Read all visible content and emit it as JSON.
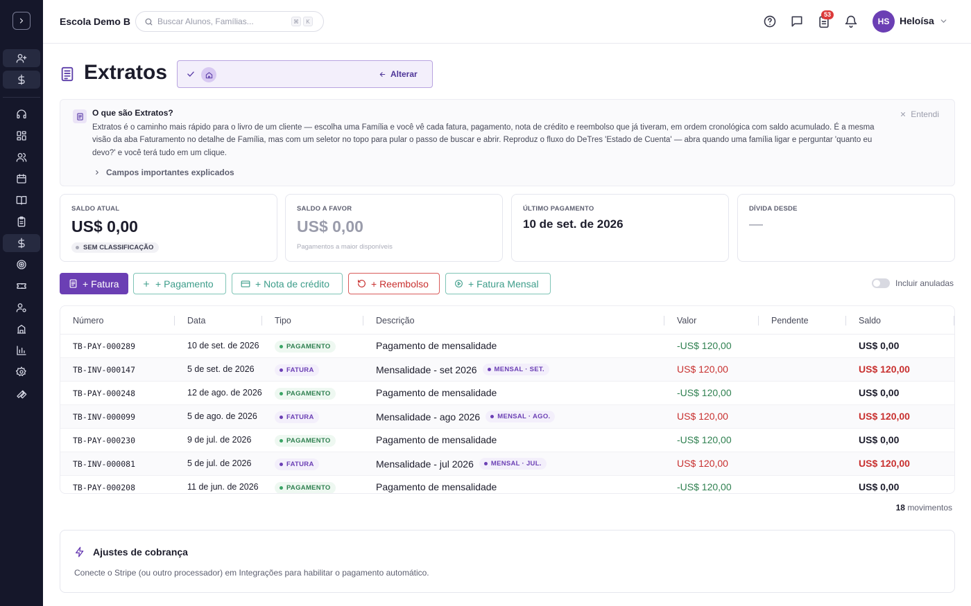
{
  "header": {
    "school": "Escola Demo B",
    "search_placeholder": "Buscar Alunos, Famílias...",
    "kbd_1": "⌘",
    "kbd_2": "K",
    "notification_count": "53",
    "avatar_initials": "HS",
    "user_name": "Heloísa"
  },
  "page": {
    "title": "Extratos",
    "selector_change": "Alterar"
  },
  "info": {
    "title": "O que são Extratos?",
    "body": "Extratos é o caminho mais rápido para o livro de um cliente — escolha uma Família e você vê cada fatura, pagamento, nota de crédito e reembolso que já tiveram, em ordem cronológica com saldo acumulado. É a mesma visão da aba Faturamento no detalhe de Família, mas com um seletor no topo para pular o passo de buscar e abrir. Reproduz o fluxo do DeTres 'Estado de Cuenta' — abra quando uma família ligar e perguntar 'quanto eu devo?' e você terá tudo em um clique.",
    "dismiss": "Entendi",
    "more": "Campos importantes explicados"
  },
  "cards": {
    "saldo_label": "SALDO ATUAL",
    "saldo_value": "US$ 0,00",
    "saldo_tag": "SEM CLASSIFICAÇÃO",
    "favor_label": "SALDO A FAVOR",
    "favor_value": "US$ 0,00",
    "favor_sub": "Pagamentos a maior disponíveis",
    "ultimo_label": "ÚLTIMO PAGAMENTO",
    "ultimo_value": "10 de set. de 2026",
    "divida_label": "DÍVIDA DESDE",
    "divida_value": "—"
  },
  "actions": {
    "fatura": "+ Fatura",
    "pagamento": "+ Pagamento",
    "nota": "+ Nota de crédito",
    "reembolso": "+ Reembolso",
    "mensal": "+ Fatura Mensal",
    "toggle_label": "Incluir anuladas"
  },
  "table": {
    "headers": [
      "Número",
      "Data",
      "Tipo",
      "Descrição",
      "Valor",
      "Pendente",
      "Saldo"
    ],
    "rows": [
      {
        "numero": "TB-PAY-000289",
        "data": "10 de set. de 2026",
        "tipo": "PAGAMENTO",
        "desc": "Pagamento de mensalidade",
        "tag": "",
        "valor": "-US$ 120,00",
        "pendente": "",
        "saldo": "US$ 0,00"
      },
      {
        "numero": "TB-INV-000147",
        "data": "5 de set. de 2026",
        "tipo": "FATURA",
        "desc": "Mensalidade - set 2026",
        "tag": "MENSAL · SET.",
        "valor": "US$ 120,00",
        "pendente": "",
        "saldo": "US$ 120,00"
      },
      {
        "numero": "TB-PAY-000248",
        "data": "12 de ago. de 2026",
        "tipo": "PAGAMENTO",
        "desc": "Pagamento de mensalidade",
        "tag": "",
        "valor": "-US$ 120,00",
        "pendente": "",
        "saldo": "US$ 0,00"
      },
      {
        "numero": "TB-INV-000099",
        "data": "5 de ago. de 2026",
        "tipo": "FATURA",
        "desc": "Mensalidade - ago 2026",
        "tag": "MENSAL · AGO.",
        "valor": "US$ 120,00",
        "pendente": "",
        "saldo": "US$ 120,00"
      },
      {
        "numero": "TB-PAY-000230",
        "data": "9 de jul. de 2026",
        "tipo": "PAGAMENTO",
        "desc": "Pagamento de mensalidade",
        "tag": "",
        "valor": "-US$ 120,00",
        "pendente": "",
        "saldo": "US$ 0,00"
      },
      {
        "numero": "TB-INV-000081",
        "data": "5 de jul. de 2026",
        "tipo": "FATURA",
        "desc": "Mensalidade - jul 2026",
        "tag": "MENSAL · JUL.",
        "valor": "US$ 120,00",
        "pendente": "",
        "saldo": "US$ 120,00"
      },
      {
        "numero": "TB-PAY-000208",
        "data": "11 de jun. de 2026",
        "tipo": "PAGAMENTO",
        "desc": "Pagamento de mensalidade",
        "tag": "",
        "valor": "-US$ 120,00",
        "pendente": "",
        "saldo": "US$ 0,00"
      }
    ],
    "count_number": "18",
    "count_label": "movimentos"
  },
  "billing": {
    "title": "Ajustes de cobrança",
    "text": "Conecte o Stripe (ou outro processador) em Integrações para habilitar o pagamento automático."
  },
  "colors": {
    "accent": "#6b3fb4",
    "sidebar_bg": "#15172a",
    "positive": "#2f8050",
    "negative": "#c8302f",
    "teal": "#3d9d8a"
  }
}
